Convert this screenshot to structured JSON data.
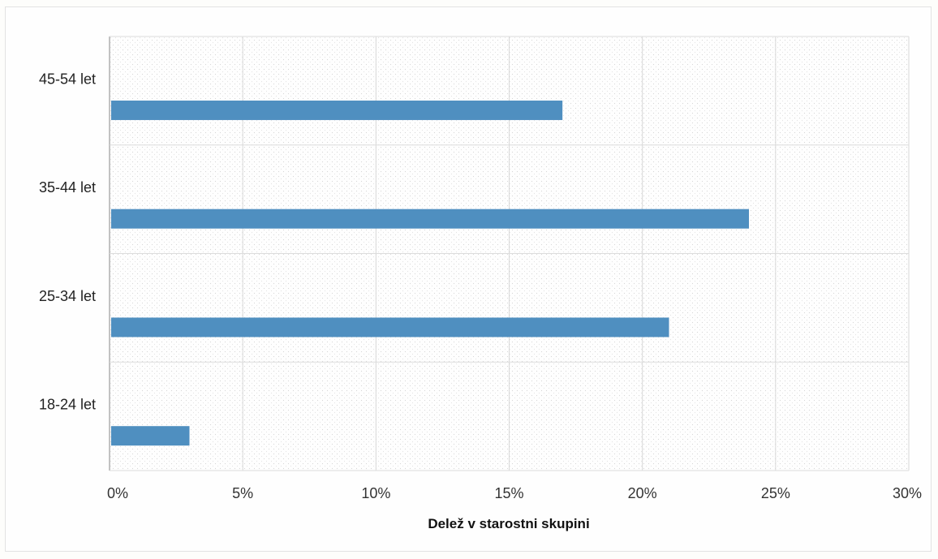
{
  "chart_data": {
    "type": "bar",
    "orientation": "horizontal",
    "categories": [
      "18-24 let",
      "25-34 let",
      "35-44 let",
      "45-54 let"
    ],
    "values": [
      0.03,
      0.21,
      0.24,
      0.17
    ],
    "xlabel": "Delež v starostni skupini",
    "ylabel": "",
    "xlim": [
      0,
      0.3
    ],
    "xticks": [
      "0%",
      "5%",
      "10%",
      "15%",
      "20%",
      "25%",
      "30%"
    ],
    "grid": true,
    "legend": "none",
    "bar_color": "#4f8fc0"
  }
}
